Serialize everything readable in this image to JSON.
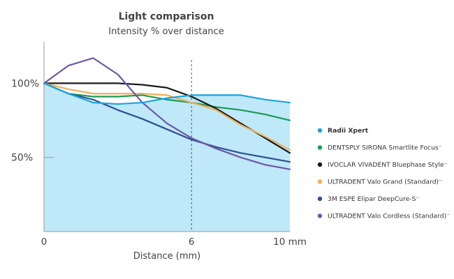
{
  "chart_data": {
    "type": "line",
    "title": "Light comparison",
    "subtitle": "Intensity % over distance",
    "xlabel": "Distance (mm)",
    "ylabel": "",
    "x_ticks": [
      {
        "value": 0,
        "label": "0"
      },
      {
        "value": 6,
        "label": "6"
      },
      {
        "value": 10,
        "label": "10 mm"
      }
    ],
    "y_ticks": [
      {
        "value": 100,
        "label": "100%"
      },
      {
        "value": 50,
        "label": "50%"
      }
    ],
    "xlim": [
      0,
      10
    ],
    "ylim": [
      0,
      127
    ],
    "reference_line_x": 6,
    "legend_position": "right",
    "series": [
      {
        "name": "Radii Xpert",
        "color": "#1aa3e0",
        "fill": "#bfe8f9",
        "filled": true,
        "bold": true,
        "x": [
          0,
          1,
          2,
          3,
          4,
          5,
          6,
          7,
          8,
          9,
          10
        ],
        "y": [
          100,
          93,
          87,
          86,
          87,
          90,
          92,
          92,
          92,
          89,
          87
        ]
      },
      {
        "name": "DENTSPLY SIRONA Smartlite Focus⁻",
        "color": "#1a9b52",
        "x": [
          0,
          1,
          2,
          3,
          4,
          5,
          6,
          7,
          8,
          9,
          10
        ],
        "y": [
          100,
          93,
          91,
          91,
          92,
          89,
          87,
          84,
          82,
          79,
          75
        ]
      },
      {
        "name": "IVOCLAR VIVADENT Bluephase Style⁻",
        "color": "#1a1a1a",
        "x": [
          0,
          1,
          2,
          3,
          4,
          5,
          6,
          7,
          8,
          9,
          10
        ],
        "y": [
          100,
          100,
          100,
          100,
          99,
          97,
          91,
          83,
          73,
          63,
          53
        ]
      },
      {
        "name": "ULTRADENT Valo Grand (Standard)⁻",
        "color": "#f2ad56",
        "x": [
          0,
          1,
          2,
          3,
          4,
          5,
          6,
          7,
          8,
          9,
          10
        ],
        "y": [
          100,
          96,
          93,
          93,
          93,
          92,
          87,
          82,
          72,
          64,
          55
        ]
      },
      {
        "name": "3M ESPE Elipar DeepCure-S⁻",
        "color": "#2e4f91",
        "x": [
          0,
          1,
          2,
          3,
          4,
          5,
          6,
          7,
          8,
          9,
          10
        ],
        "y": [
          100,
          93,
          89,
          82,
          76,
          69,
          62,
          57,
          53,
          50,
          47
        ]
      },
      {
        "name": "ULTRADENT Valo Cordless (Standard)⁻",
        "color": "#6c58a3",
        "x": [
          0,
          1,
          2,
          3,
          4,
          5,
          6,
          7,
          8,
          9,
          10
        ],
        "y": [
          100,
          112,
          117,
          106,
          87,
          73,
          63,
          56,
          50,
          45,
          42
        ]
      }
    ]
  }
}
